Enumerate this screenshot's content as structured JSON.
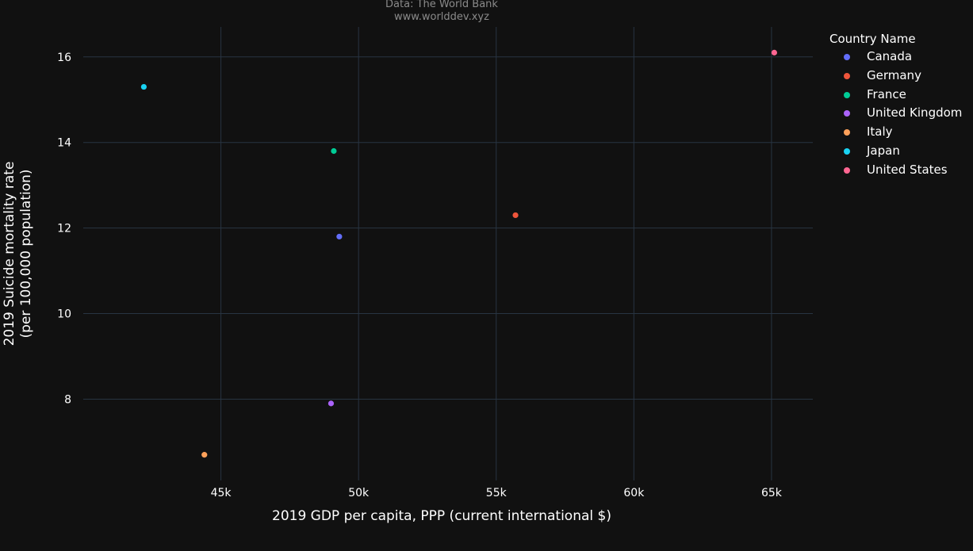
{
  "source": {
    "line1": "Data: The World Bank",
    "line2": "www.worlddev.xyz"
  },
  "legend": {
    "title": "Country Name"
  },
  "chart_data": {
    "type": "scatter",
    "xlabel": "2019 GDP per capita, PPP (current international $)",
    "ylabel_lines": [
      "2019 Suicide mortality rate",
      "(per 100,000 population)"
    ],
    "xlim": [
      40000,
      66500
    ],
    "ylim": [
      6.1,
      16.7
    ],
    "x_ticks": [
      45000,
      50000,
      55000,
      60000,
      65000
    ],
    "x_tick_labels": [
      "45k",
      "50k",
      "55k",
      "60k",
      "65k"
    ],
    "y_ticks": [
      8,
      10,
      12,
      14,
      16
    ],
    "y_tick_labels": [
      "8",
      "10",
      "12",
      "14",
      "16"
    ],
    "grid": true,
    "legend_position": "top-right",
    "series": [
      {
        "name": "Canada",
        "color": "#636efa",
        "x": 49300,
        "y": 11.8
      },
      {
        "name": "Germany",
        "color": "#ef553b",
        "x": 55700,
        "y": 12.3
      },
      {
        "name": "France",
        "color": "#00cc96",
        "x": 49100,
        "y": 13.8
      },
      {
        "name": "United Kingdom",
        "color": "#ab63fa",
        "x": 49000,
        "y": 7.9
      },
      {
        "name": "Italy",
        "color": "#ffa15a",
        "x": 44400,
        "y": 6.7
      },
      {
        "name": "Japan",
        "color": "#19d3f3",
        "x": 42200,
        "y": 15.3
      },
      {
        "name": "United States",
        "color": "#ff6692",
        "x": 65100,
        "y": 16.1
      }
    ]
  }
}
